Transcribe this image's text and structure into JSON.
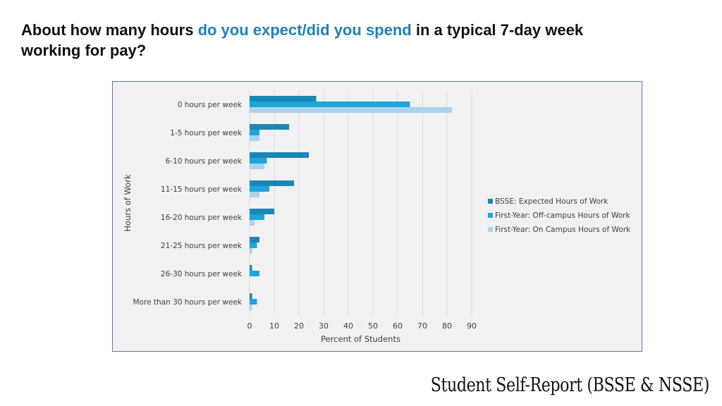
{
  "title": {
    "part1": "About how many hours ",
    "highlight": "do you expect/did you spend",
    "part2": " in a typical 7-day week working for pay?"
  },
  "footer": "Student Self-Report (BSSE & NSSE)",
  "colors": {
    "title_highlight": "#1f7fc0",
    "series": [
      "#1a87b5",
      "#1ea5db",
      "#a8d4ef"
    ],
    "grid": "#d9d9d9",
    "plot_bg": "#f1f1f1",
    "frame": "#5a7fa6"
  },
  "chart_data": {
    "type": "bar",
    "orientation": "horizontal",
    "categories": [
      "0 hours per week",
      "1-5 hours per week",
      "6-10 hours per week",
      "11-15 hours per week",
      "16-20 hours per week",
      "21-25 hours per week",
      "26-30 hours per week",
      "More than 30 hours per week"
    ],
    "series": [
      {
        "name": "BSSE:  Expected Hours of Work",
        "values": [
          27,
          16,
          24,
          18,
          10,
          4,
          1,
          1
        ]
      },
      {
        "name": "First-Year:  Off-campus Hours of Work",
        "values": [
          65,
          4,
          7,
          8,
          6,
          3,
          4,
          3
        ]
      },
      {
        "name": "First-Year:   On Campus Hours of Work",
        "values": [
          82,
          4,
          6,
          4,
          2,
          1,
          0,
          1
        ]
      }
    ],
    "xlabel": "Percent of Students",
    "ylabel": "Hours  of Work",
    "xlim": [
      0,
      90
    ],
    "xticks": [
      0,
      10,
      20,
      30,
      40,
      50,
      60,
      70,
      80,
      90
    ],
    "grid": "vertical",
    "legend_position": "right"
  }
}
